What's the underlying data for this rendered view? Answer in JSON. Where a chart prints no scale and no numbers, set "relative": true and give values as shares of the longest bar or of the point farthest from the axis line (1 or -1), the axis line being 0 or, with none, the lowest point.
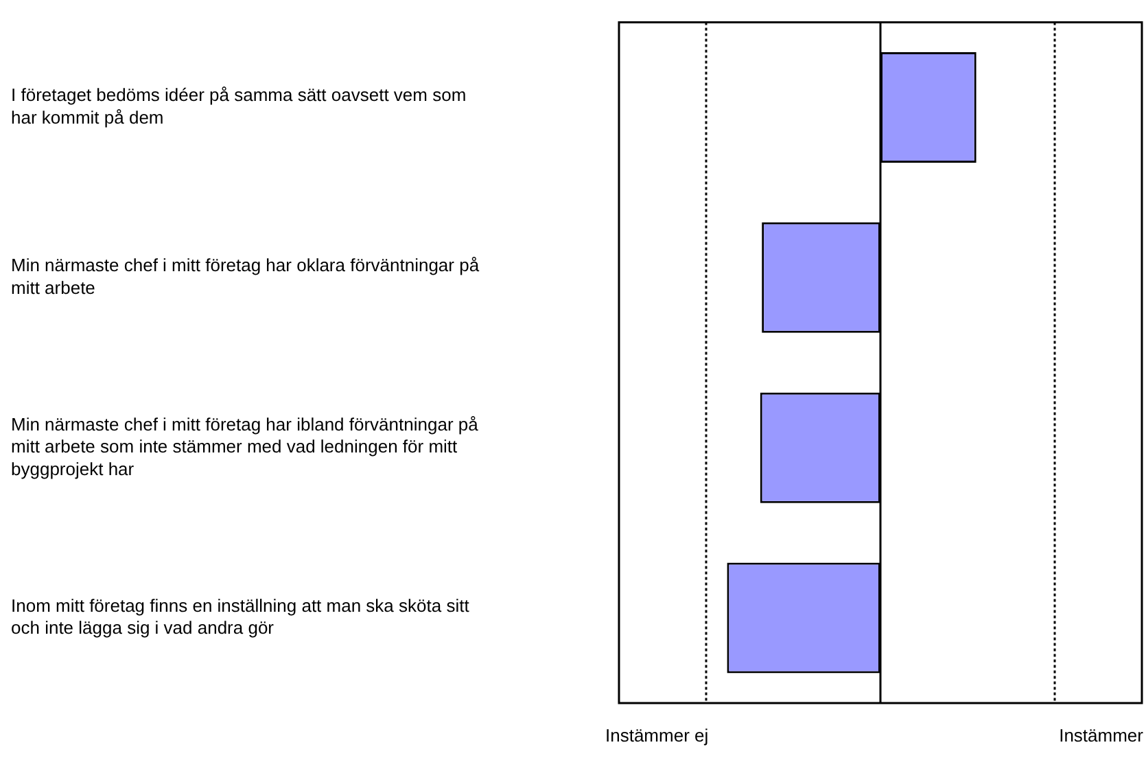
{
  "chart_data": {
    "type": "bar",
    "orientation": "horizontal",
    "relative": true,
    "categories": [
      "I företaget bedöms idéer på samma sätt oavsett vem som har kommit på dem",
      "Min närmaste chef i mitt företag har oklara förväntningar på mitt arbete",
      "Min närmaste chef i mitt företag har ibland förväntningar på mitt arbete som inte stämmer med vad ledningen för mitt byggprojekt har",
      "Inom mitt företag finns en inställning att man ska sköta sitt och inte lägga sig i vad andra gör"
    ],
    "values": [
      0.625,
      -0.773,
      -0.784,
      -1
    ],
    "color": "#9999ff",
    "ref_lines": [
      {
        "axis": "x",
        "value": 0,
        "color": "#000000",
        "line_style": "solid"
      },
      {
        "axis": "x",
        "value": -1.136,
        "color": "#000000",
        "line_style": "dotted"
      },
      {
        "axis": "x",
        "value": 1.136,
        "color": "#000000",
        "line_style": "dotted"
      }
    ],
    "annotations": [
      "Instämmer ej",
      "Instämmer"
    ],
    "legend": false
  }
}
